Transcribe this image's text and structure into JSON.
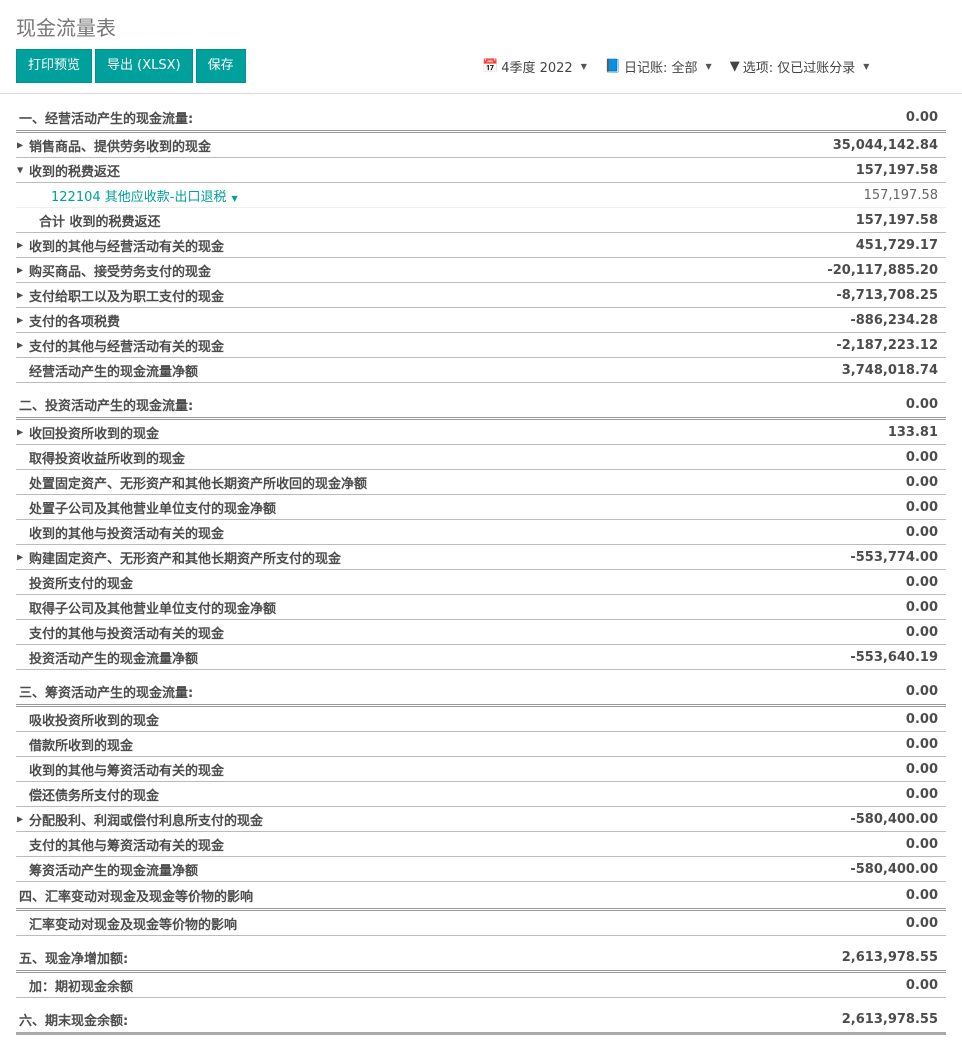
{
  "title": "现金流量表",
  "toolbar": {
    "print": "打印预览",
    "export": "导出 (XLSX)",
    "save": "保存"
  },
  "filters": {
    "date": "4季度 2022",
    "journal": "日记账: 全部",
    "options": "选项: 仅已过账分录"
  },
  "colors": {
    "accent": "#00a09d"
  },
  "rows": [
    {
      "type": "section",
      "label": "一、经营活动产生的现金流量:",
      "value": "0.00"
    },
    {
      "type": "line",
      "icon": "collapsed",
      "label": "销售商品、提供劳务收到的现金",
      "value": "35,044,142.84"
    },
    {
      "type": "line",
      "icon": "expanded",
      "label": "收到的税费返还",
      "value": "157,197.58"
    },
    {
      "type": "sub",
      "label": "122104 其他应收款-出口退税",
      "value": "157,197.58"
    },
    {
      "type": "subtotal",
      "label": "合计 收到的税费返还",
      "value": "157,197.58"
    },
    {
      "type": "line",
      "icon": "collapsed",
      "label": "收到的其他与经营活动有关的现金",
      "value": "451,729.17"
    },
    {
      "type": "line",
      "icon": "collapsed",
      "label": "购买商品、接受劳务支付的现金",
      "value": "-20,117,885.20"
    },
    {
      "type": "line",
      "icon": "collapsed",
      "label": "支付给职工以及为职工支付的现金",
      "value": "-8,713,708.25"
    },
    {
      "type": "line",
      "icon": "collapsed",
      "label": "支付的各项税费",
      "value": "-886,234.28"
    },
    {
      "type": "line",
      "icon": "collapsed",
      "label": "支付的其他与经营活动有关的现金",
      "value": "-2,187,223.12"
    },
    {
      "type": "total",
      "label": "经营活动产生的现金流量净额",
      "value": "3,748,018.74"
    },
    {
      "type": "section",
      "mt": true,
      "label": "二、投资活动产生的现金流量:",
      "value": "0.00"
    },
    {
      "type": "line",
      "icon": "collapsed",
      "label": "收回投资所收到的现金",
      "value": "133.81"
    },
    {
      "type": "line",
      "label": "取得投资收益所收到的现金",
      "value": "0.00"
    },
    {
      "type": "line",
      "label": "处置固定资产、无形资产和其他长期资产所收回的现金净额",
      "value": "0.00"
    },
    {
      "type": "line",
      "label": "处置子公司及其他营业单位支付的现金净额",
      "value": "0.00"
    },
    {
      "type": "line",
      "label": "收到的其他与投资活动有关的现金",
      "value": "0.00"
    },
    {
      "type": "line",
      "icon": "collapsed",
      "label": "购建固定资产、无形资产和其他长期资产所支付的现金",
      "value": "-553,774.00"
    },
    {
      "type": "line",
      "label": "投资所支付的现金",
      "value": "0.00"
    },
    {
      "type": "line",
      "label": "取得子公司及其他营业单位支付的现金净额",
      "value": "0.00"
    },
    {
      "type": "line",
      "label": "支付的其他与投资活动有关的现金",
      "value": "0.00"
    },
    {
      "type": "total",
      "label": "投资活动产生的现金流量净额",
      "value": "-553,640.19"
    },
    {
      "type": "section",
      "mt": true,
      "label": "三、筹资活动产生的现金流量:",
      "value": "0.00"
    },
    {
      "type": "line",
      "label": "吸收投资所收到的现金",
      "value": "0.00"
    },
    {
      "type": "line",
      "label": "借款所收到的现金",
      "value": "0.00"
    },
    {
      "type": "line",
      "label": "收到的其他与筹资活动有关的现金",
      "value": "0.00"
    },
    {
      "type": "line",
      "label": "偿还债务所支付的现金",
      "value": "0.00"
    },
    {
      "type": "line",
      "icon": "collapsed",
      "label": "分配股利、利润或偿付利息所支付的现金",
      "value": "-580,400.00"
    },
    {
      "type": "line",
      "label": "支付的其他与筹资活动有关的现金",
      "value": "0.00"
    },
    {
      "type": "total",
      "label": "筹资活动产生的现金流量净额",
      "value": "-580,400.00"
    },
    {
      "type": "section",
      "label": "四、汇率变动对现金及现金等价物的影响",
      "value": "0.00"
    },
    {
      "type": "total",
      "label": "汇率变动对现金及现金等价物的影响",
      "value": "0.00"
    },
    {
      "type": "section",
      "mt": true,
      "label": "五、现金净增加额:",
      "value": "2,613,978.55"
    },
    {
      "type": "total",
      "label": "加：期初现金余额",
      "value": "0.00"
    },
    {
      "type": "section",
      "mt": true,
      "last": true,
      "label": "六、期末现金余额:",
      "value": "2,613,978.55"
    }
  ]
}
